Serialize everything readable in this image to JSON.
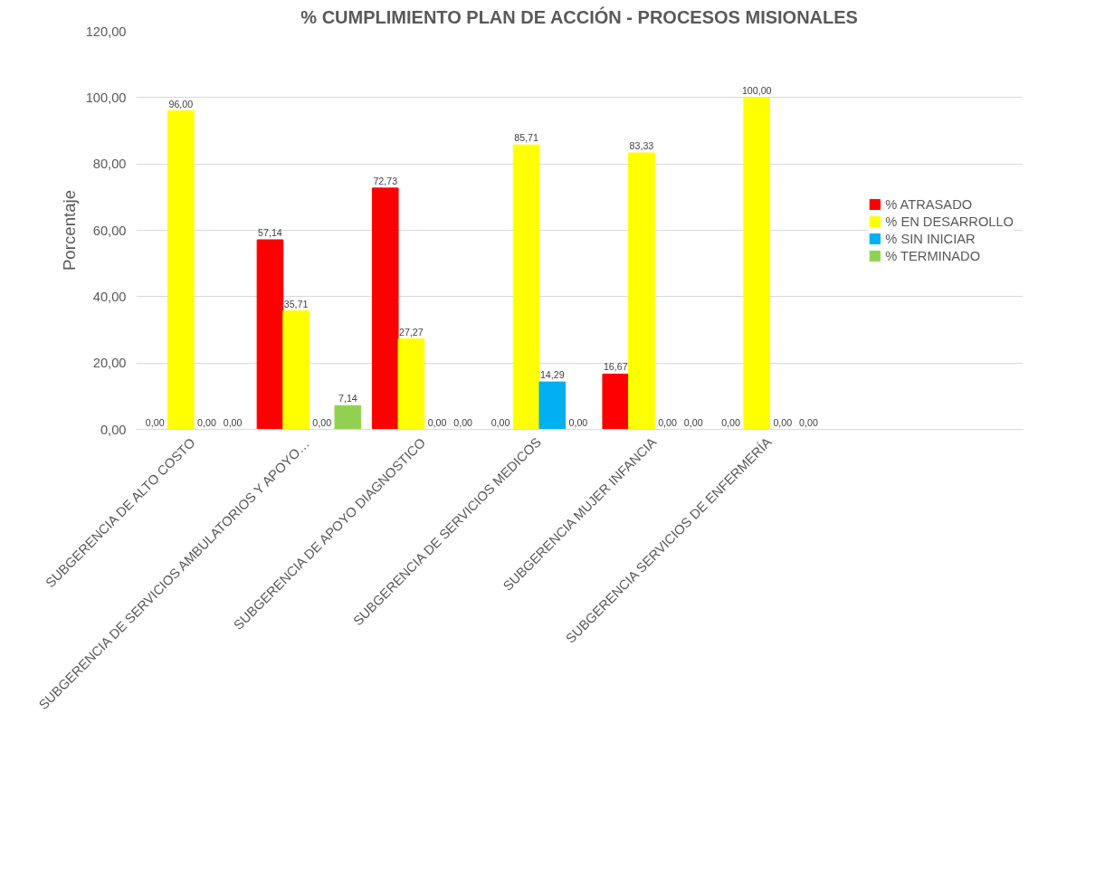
{
  "chart_data": {
    "type": "bar",
    "title": "% CUMPLIMIENTO PLAN DE ACCIÓN - PROCESOS MISIONALES",
    "ylabel": "Porcentaje",
    "categories": [
      "SUBGERENCIA DE ALTO COSTO",
      "SUBGERENCIA DE SERVICIOS AMBULATORIOS Y APOYO…",
      "SUBGERENCIA DE APOYO DIAGNOSTICO",
      "SUBGERENCIA DE SERVICIOS MEDICOS",
      "SUBGERENCIA MUJER INFANCIA",
      "SUBGERENCIA SERVICIOS DE ENFERMERÍA"
    ],
    "series": [
      {
        "name": "% ATRASADO",
        "color": "#ff0000",
        "values": [
          0,
          57.14,
          72.73,
          0,
          16.67,
          0
        ],
        "value_labels": [
          "0,00",
          "57,14",
          "72,73",
          "0,00",
          "16,67",
          "0,00"
        ]
      },
      {
        "name": "% EN DESARROLLO",
        "color": "#ffff00",
        "values": [
          96,
          35.71,
          27.27,
          85.71,
          83.33,
          100
        ],
        "value_labels": [
          "96,00",
          "35,71",
          "27,27",
          "85,71",
          "83,33",
          "100,00"
        ]
      },
      {
        "name": "% SIN INICIAR",
        "color": "#00b0f0",
        "values": [
          0,
          0,
          0,
          14.29,
          0,
          0
        ],
        "value_labels": [
          "0,00",
          "0,00",
          "0,00",
          "14,29",
          "0,00",
          "0,00"
        ]
      },
      {
        "name": "% TERMINADO",
        "color": "#92d050",
        "values": [
          0,
          7.14,
          0,
          0,
          0,
          0
        ],
        "value_labels": [
          "0,00",
          "7,14",
          "0,00",
          "0,00",
          "0,00",
          "0,00"
        ]
      }
    ],
    "ylim": [
      0,
      120
    ],
    "yticks": [
      {
        "value": 0,
        "label": "0,00"
      },
      {
        "value": 20,
        "label": "20,00"
      },
      {
        "value": 40,
        "label": "40,00"
      },
      {
        "value": 60,
        "label": "60,00"
      },
      {
        "value": 80,
        "label": "80,00"
      },
      {
        "value": 100,
        "label": "100,00"
      },
      {
        "value": 120,
        "label": "120,00"
      }
    ],
    "grid": "y",
    "legend": "right"
  }
}
